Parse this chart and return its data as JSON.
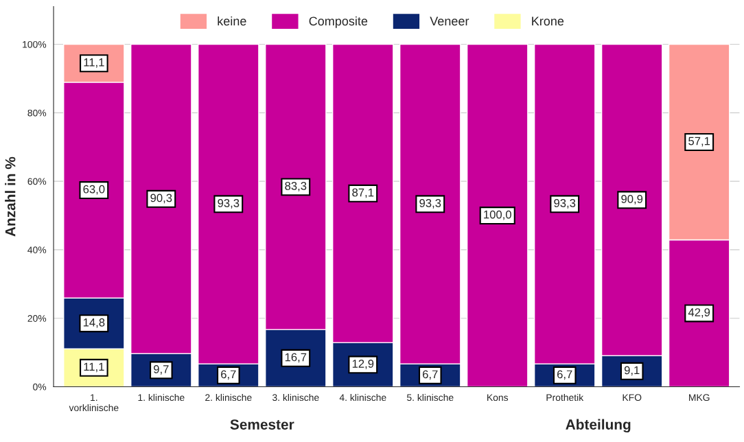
{
  "chart_data": {
    "type": "bar",
    "stacked": true,
    "ylabel": "Anzahl in %",
    "categories": [
      "1.\nvorklinische",
      "1. klinische",
      "2. klinische",
      "3. klinische",
      "4. klinische",
      "5. klinische",
      "Kons",
      "Prothetik",
      "KFO",
      "MKG"
    ],
    "series": [
      {
        "name": "Krone",
        "color": "#fdfc9c",
        "values": [
          11.1,
          null,
          null,
          null,
          null,
          null,
          null,
          null,
          null,
          null
        ],
        "value_labels": [
          "11,1",
          null,
          null,
          null,
          null,
          null,
          null,
          null,
          null,
          null
        ]
      },
      {
        "name": "Veneer",
        "color": "#0b2670",
        "values": [
          14.8,
          9.7,
          6.7,
          16.7,
          12.9,
          6.7,
          null,
          6.7,
          9.1,
          null
        ],
        "value_labels": [
          "14,8",
          "9,7",
          "6,7",
          "16,7",
          "12,9",
          "6,7",
          null,
          "6,7",
          "9,1",
          null
        ]
      },
      {
        "name": "Composite",
        "color": "#c8009a",
        "values": [
          63.0,
          90.3,
          93.3,
          83.3,
          87.1,
          93.3,
          100.0,
          93.3,
          90.9,
          42.9
        ],
        "value_labels": [
          "63,0",
          "90,3",
          "93,3",
          "83,3",
          "87,1",
          "93,3",
          "100,0",
          "93,3",
          "90,9",
          "42,9"
        ]
      },
      {
        "name": "keine",
        "color": "#fd9a96",
        "values": [
          11.1,
          null,
          null,
          null,
          null,
          null,
          null,
          null,
          null,
          57.1
        ],
        "value_labels": [
          "11,1",
          null,
          null,
          null,
          null,
          null,
          null,
          null,
          null,
          "57,1"
        ]
      }
    ],
    "ylim": [
      0,
      111
    ],
    "yticks": [
      {
        "value": 0,
        "label": "0%"
      },
      {
        "value": 20,
        "label": "20%"
      },
      {
        "value": 40,
        "label": "40%"
      },
      {
        "value": 60,
        "label": "60%"
      },
      {
        "value": 80,
        "label": "80%"
      },
      {
        "value": 100,
        "label": "100%"
      }
    ],
    "grid": "y",
    "legend": "top",
    "annotations": [
      "Semester",
      "Abteilung"
    ]
  }
}
